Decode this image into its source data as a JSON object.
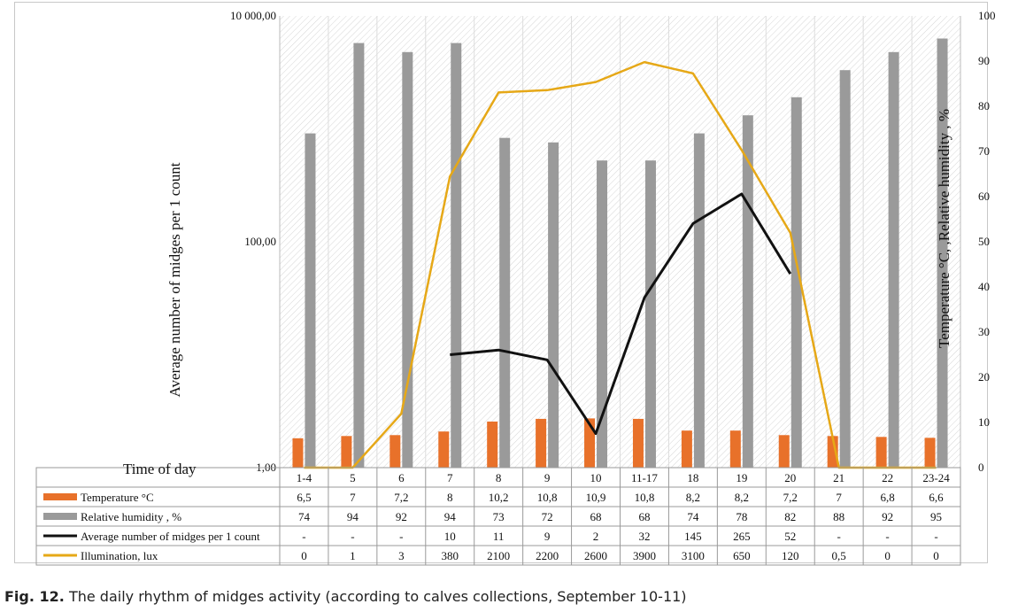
{
  "chart_data": {
    "type": "bar",
    "title": "",
    "time_of_day_label": "Time of day",
    "categories": [
      "1-4",
      "5",
      "6",
      "7",
      "8",
      "9",
      "10",
      "11-17",
      "18",
      "19",
      "20",
      "21",
      "22",
      "23-24"
    ],
    "y_left": {
      "label": "Average number of midges per 1 count",
      "scale": "log",
      "ticks": [
        "1,00",
        "100,00",
        "10 000,00"
      ],
      "range": [
        1,
        10000
      ]
    },
    "y_right": {
      "label": "Temperature °C, ,Relative humidity , %",
      "ticks": [
        "0",
        "10",
        "20",
        "30",
        "40",
        "50",
        "60",
        "70",
        "80",
        "90",
        "100"
      ],
      "range": [
        0,
        100
      ]
    },
    "series": [
      {
        "name": "Temperature °C",
        "type": "bar",
        "axis": "right",
        "color": "#e8712a",
        "values": [
          6.5,
          7,
          7.2,
          8,
          10.2,
          10.8,
          10.9,
          10.8,
          8.2,
          8.2,
          7.2,
          7,
          6.8,
          6.6
        ],
        "labels": [
          "6,5",
          "7",
          "7,2",
          "8",
          "10,2",
          "10,8",
          "10,9",
          "10,8",
          "8,2",
          "8,2",
          "7,2",
          "7",
          "6,8",
          "6,6"
        ]
      },
      {
        "name": "Relative humidity , %",
        "type": "bar",
        "axis": "right",
        "color": "#9a9a9a",
        "values": [
          74,
          94,
          92,
          94,
          73,
          72,
          68,
          68,
          74,
          78,
          82,
          88,
          92,
          95
        ],
        "labels": [
          "74",
          "94",
          "92",
          "94",
          "73",
          "72",
          "68",
          "68",
          "74",
          "78",
          "82",
          "88",
          "92",
          "95"
        ]
      },
      {
        "name": "Average number of midges per 1 count",
        "type": "line",
        "axis": "left",
        "color": "#111111",
        "values": [
          null,
          null,
          null,
          10,
          11,
          9,
          2,
          32,
          145,
          265,
          52,
          null,
          null,
          null
        ],
        "labels": [
          "-",
          "-",
          "-",
          "10",
          "11",
          "9",
          "2",
          "32",
          "145",
          "265",
          "52",
          "-",
          "-",
          "-"
        ]
      },
      {
        "name": "Illumination, lux",
        "type": "line",
        "axis": "left",
        "color": "#e6a817",
        "values": [
          0,
          1,
          3,
          380,
          2100,
          2200,
          2600,
          3900,
          3100,
          650,
          120,
          0.5,
          0,
          0
        ],
        "labels": [
          "0",
          "1",
          "3",
          "380",
          "2100",
          "2200",
          "2600",
          "3900",
          "3100",
          "650",
          "120",
          "0,5",
          "0",
          "0"
        ]
      }
    ]
  },
  "caption": {
    "fig": "Fig. 12.",
    "text": " The daily rhythm of midges activity (according to calves collections, September 10-11)"
  }
}
